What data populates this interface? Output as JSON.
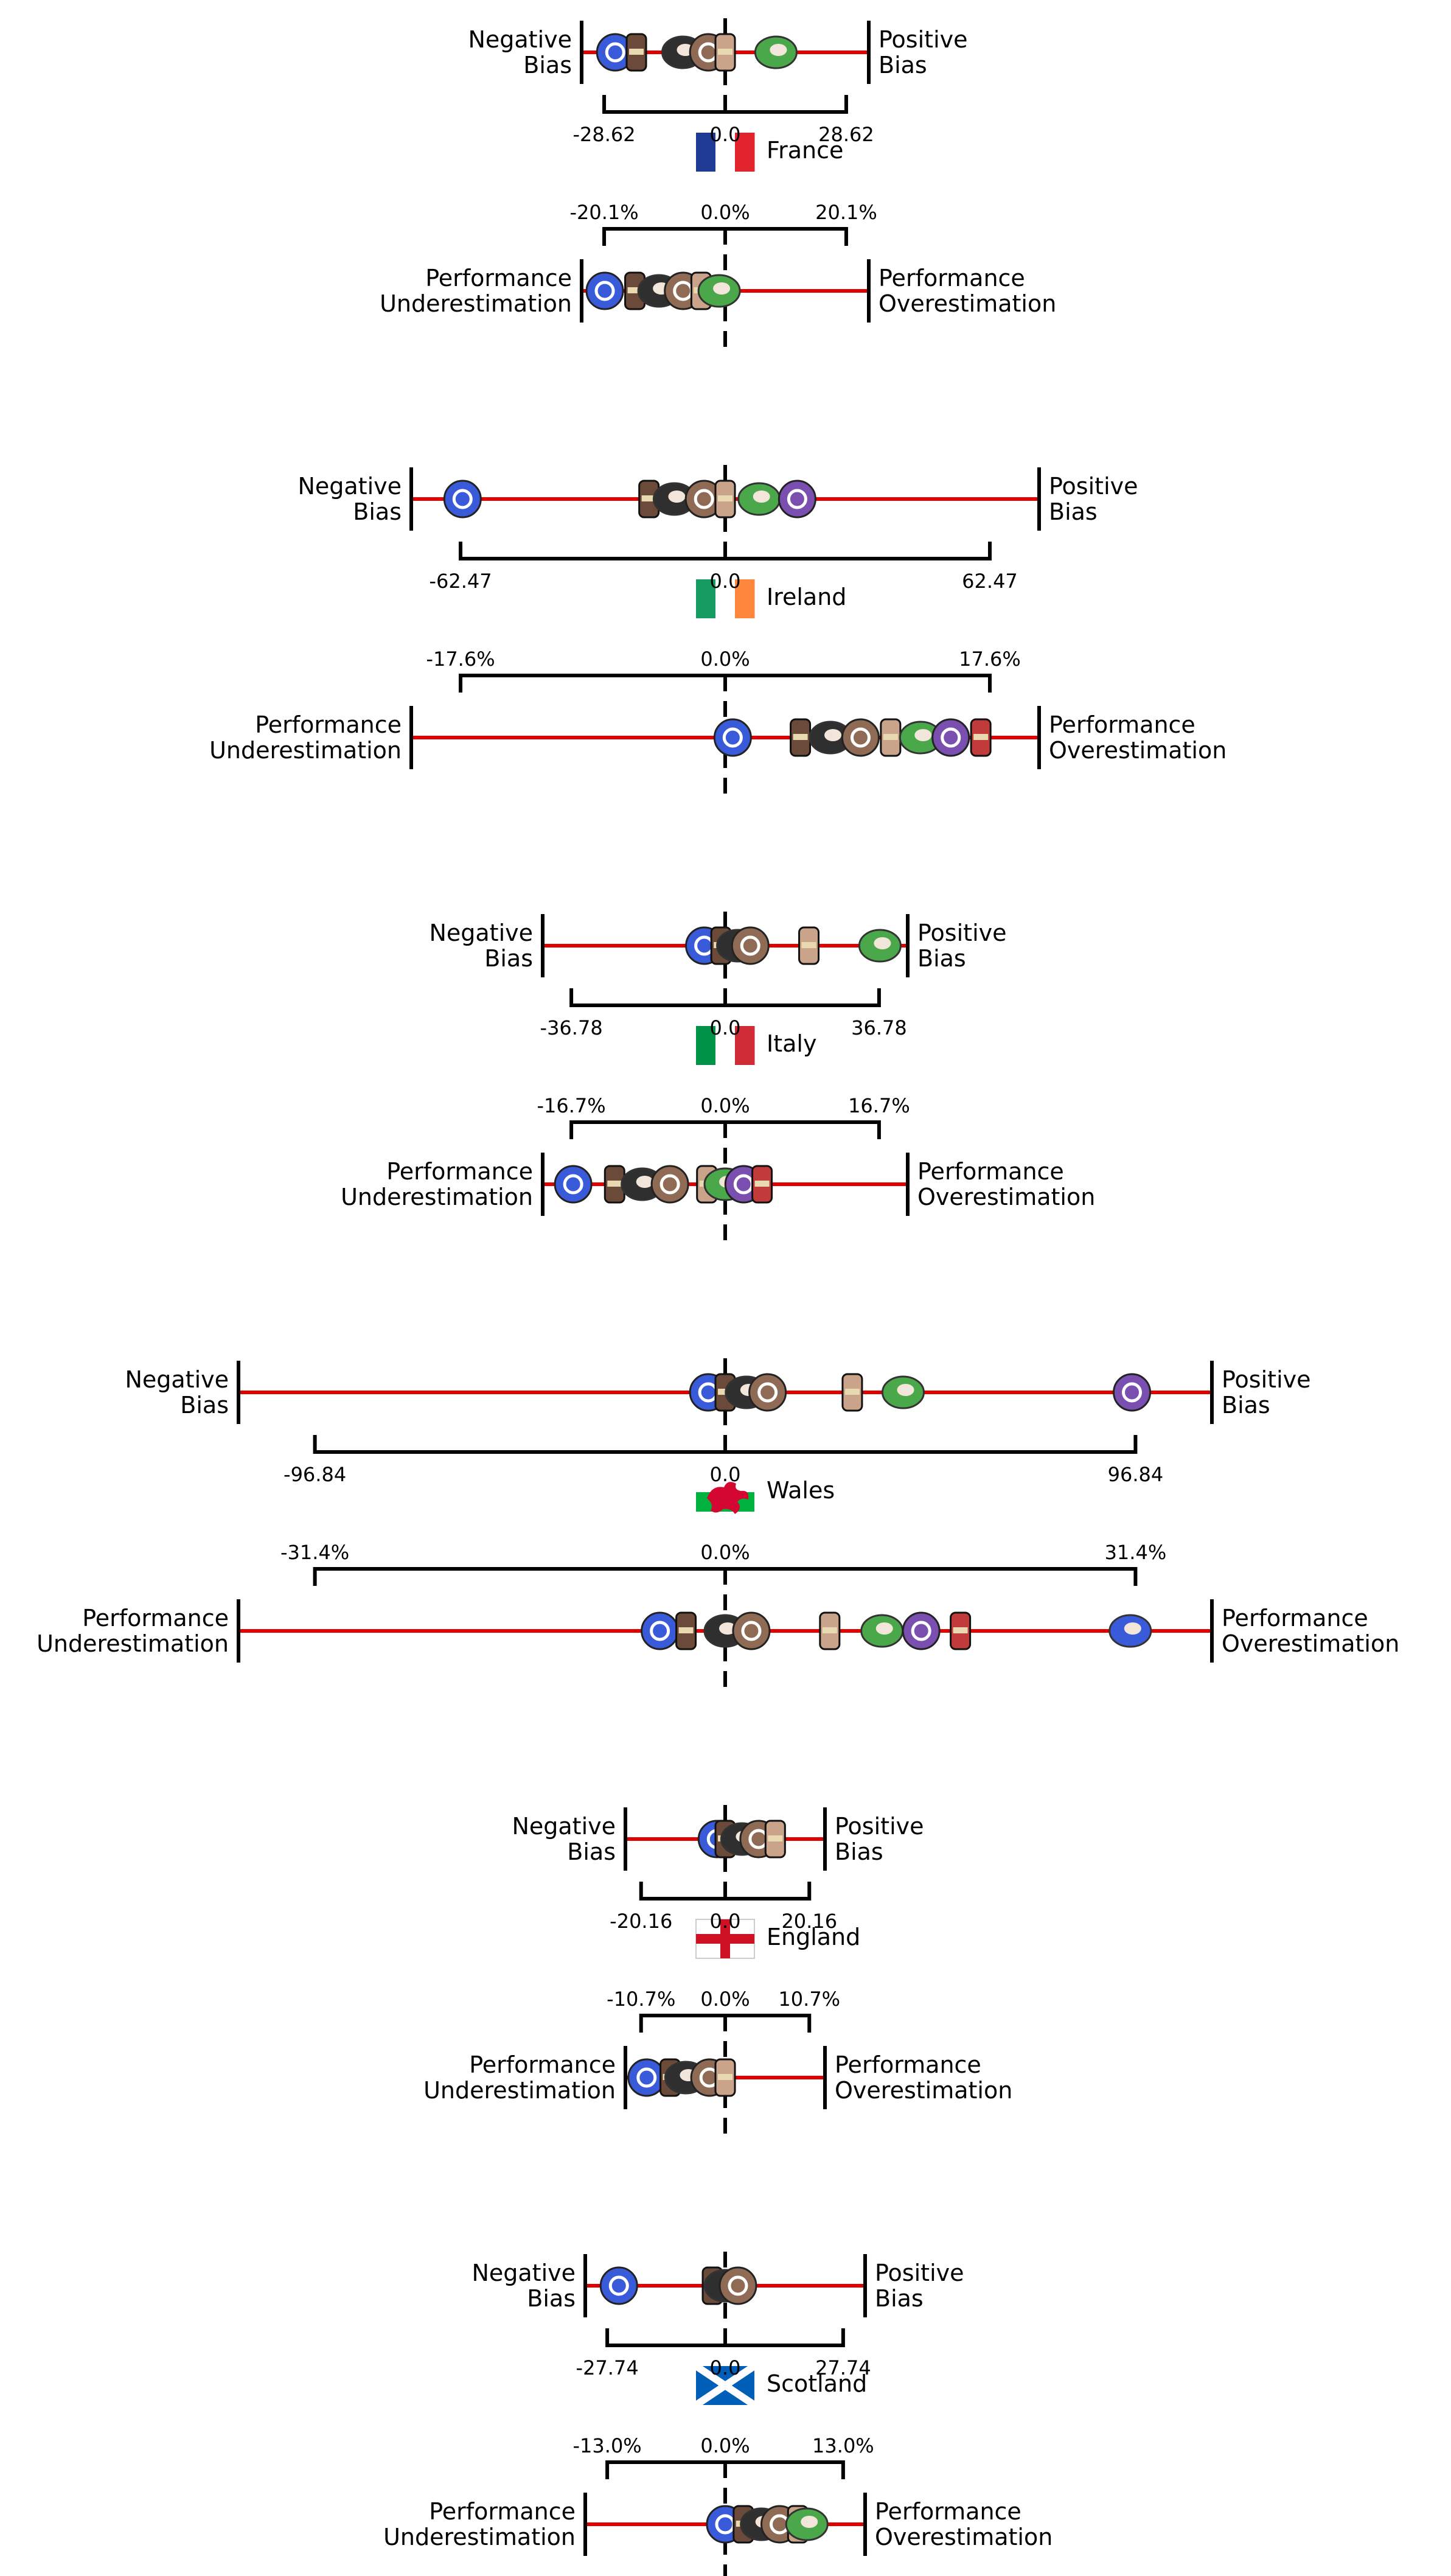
{
  "chart_data": {
    "type": "scatter",
    "panels": [
      {
        "country": "France",
        "flag_colors": [
          "#1f3a93",
          "#ffffff",
          "#e1232e"
        ],
        "bias": {
          "left_label": [
            "Negative",
            "Bias"
          ],
          "right_label": [
            "Positive",
            "Bias"
          ],
          "range": 28.62,
          "tick_labels": [
            "-28.62",
            "0.0",
            "28.62"
          ],
          "values": [
            -26,
            -21,
            -10,
            -4,
            0,
            12
          ]
        },
        "performance": {
          "left_label": [
            "Performance",
            "Underestimation"
          ],
          "right_label": [
            "Performance",
            "Overestimation"
          ],
          "range": 20.1,
          "tick_labels": [
            "-20.1%",
            "0.0%",
            "20.1%"
          ],
          "values": [
            -20,
            -15,
            -11,
            -7,
            -4,
            -1
          ]
        }
      },
      {
        "country": "Ireland",
        "flag_colors": [
          "#169b62",
          "#ffffff",
          "#ff883e"
        ],
        "bias": {
          "left_label": [
            "Negative",
            "Bias"
          ],
          "right_label": [
            "Positive",
            "Bias"
          ],
          "range": 62.47,
          "tick_labels": [
            "-62.47",
            "0.0",
            "62.47"
          ],
          "values": [
            -62,
            -18,
            -12,
            -5,
            0,
            8,
            17
          ]
        },
        "performance": {
          "left_label": [
            "Performance",
            "Underestimation"
          ],
          "right_label": [
            "Performance",
            "Overestimation"
          ],
          "range": 17.6,
          "tick_labels": [
            "-17.6%",
            "0.0%",
            "17.6%"
          ],
          "values": [
            0.5,
            5,
            7,
            9,
            11,
            13,
            15,
            17
          ]
        }
      },
      {
        "country": "Italy",
        "flag_colors": [
          "#009246",
          "#ffffff",
          "#ce2b37"
        ],
        "bias": {
          "left_label": [
            "Negative",
            "Bias"
          ],
          "right_label": [
            "Positive",
            "Bias"
          ],
          "range": 36.78,
          "tick_labels": [
            "-36.78",
            "0.0",
            "36.78"
          ],
          "values": [
            -5,
            -1,
            3,
            6,
            20,
            37
          ]
        },
        "performance": {
          "left_label": [
            "Performance",
            "Underestimation"
          ],
          "right_label": [
            "Performance",
            "Overestimation"
          ],
          "range": 16.7,
          "tick_labels": [
            "-16.7%",
            "0.0%",
            "16.7%"
          ],
          "values": [
            -16.5,
            -12,
            -9,
            -6,
            -2,
            0,
            2,
            4
          ]
        }
      },
      {
        "country": "Wales",
        "flag_colors": [
          "#ffffff",
          "#00b140",
          "#d30731"
        ],
        "bias": {
          "left_label": [
            "Negative",
            "Bias"
          ],
          "right_label": [
            "Positive",
            "Bias"
          ],
          "range": 96.84,
          "tick_labels": [
            "-96.84",
            "0.0",
            "96.84"
          ],
          "values": [
            -4,
            0,
            5,
            10,
            30,
            42,
            96
          ]
        },
        "performance": {
          "left_label": [
            "Performance",
            "Underestimation"
          ],
          "right_label": [
            "Performance",
            "Overestimation"
          ],
          "range": 31.4,
          "tick_labels": [
            "-31.4%",
            "0.0%",
            "31.4%"
          ],
          "values": [
            -5,
            -3,
            0,
            2,
            8,
            12,
            15,
            18,
            31
          ]
        }
      },
      {
        "country": "England",
        "flag_colors": [
          "#ffffff",
          "#ce1124"
        ],
        "bias": {
          "left_label": [
            "Negative",
            "Bias"
          ],
          "right_label": [
            "Positive",
            "Bias"
          ],
          "range": 20.16,
          "tick_labels": [
            "-20.16",
            "0.0",
            "20.16"
          ],
          "values": [
            -2,
            0,
            4,
            8,
            12
          ]
        },
        "performance": {
          "left_label": [
            "Performance",
            "Underestimation"
          ],
          "right_label": [
            "Performance",
            "Overestimation"
          ],
          "range": 10.7,
          "tick_labels": [
            "-10.7%",
            "0.0%",
            "10.7%"
          ],
          "values": [
            -10,
            -7,
            -5,
            -2,
            0
          ]
        }
      },
      {
        "country": "Scotland",
        "flag_colors": [
          "#005eb8",
          "#ffffff"
        ],
        "bias": {
          "left_label": [
            "Negative",
            "Bias"
          ],
          "right_label": [
            "Positive",
            "Bias"
          ],
          "range": 27.74,
          "tick_labels": [
            "-27.74",
            "0.0",
            "27.74"
          ],
          "values": [
            -25,
            -3,
            0,
            3
          ]
        },
        "performance": {
          "left_label": [
            "Performance",
            "Underestimation"
          ],
          "right_label": [
            "Performance",
            "Overestimation"
          ],
          "range": 13.0,
          "tick_labels": [
            "-13.0%",
            "0.0%",
            "13.0%"
          ],
          "values": [
            0,
            2,
            4,
            6,
            8,
            9
          ]
        }
      }
    ],
    "marker_colors": [
      "#3a5bd9",
      "#6b4a3a",
      "#2f2f2f",
      "#8f6a54",
      "#c9a48a",
      "#4aa84a",
      "#7a4fb0",
      "#c23b3b"
    ],
    "line_color": "#e00000"
  }
}
